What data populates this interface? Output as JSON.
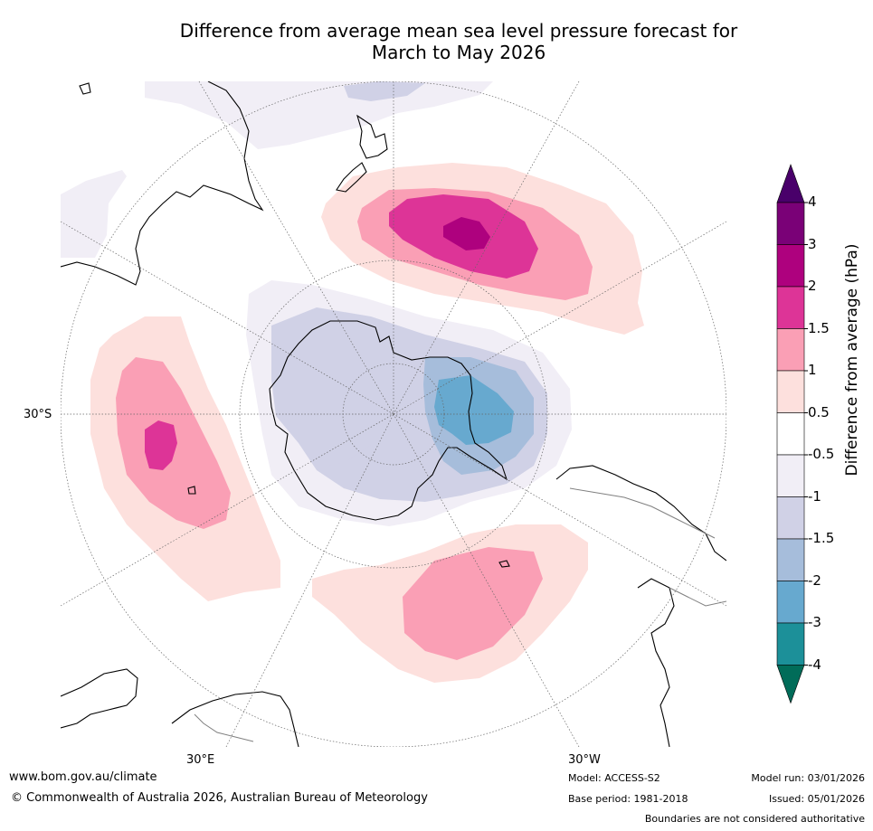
{
  "title": {
    "line1": "Difference from average mean sea level pressure forecast for",
    "line2": "March to May 2026"
  },
  "map": {
    "latitude_labels": [
      "30°S"
    ],
    "longitude_labels": [
      "30°E",
      "30°W"
    ],
    "anomaly_colors": {
      "neg_1_5_to_neg_1": "#d0d1e6",
      "neg_1_to_neg_0_5": "#f1eef6",
      "neg_2_to_neg_1_5": "#a6bddb",
      "neg_3_to_neg_2": "#67a9cf",
      "pos_0_5_to_1": "#fde0dd",
      "pos_1_to_1_5": "#fa9fb5",
      "pos_1_5_to_2": "#dd3497",
      "pos_2_to_3": "#ae017e"
    }
  },
  "colorbar": {
    "title": "Difference from average (hPa)",
    "tick_labels": [
      "4",
      "3",
      "2",
      "1.5",
      "1",
      "0.5",
      "-0.5",
      "-1",
      "-1.5",
      "-2",
      "-3",
      "-4"
    ],
    "colors": [
      "#49006a",
      "#7a0177",
      "#ae017e",
      "#dd3497",
      "#fa9fb5",
      "#fde0dd",
      "#ffffff",
      "#f1eef6",
      "#d0d1e6",
      "#a6bddb",
      "#67a9cf",
      "#1c9099",
      "#016c59"
    ]
  },
  "footer": {
    "website": "www.bom.gov.au/climate",
    "copyright": "© Commonwealth of Australia 2026, Australian Bureau of Meteorology",
    "model": "Model: ACCESS-S2",
    "base_period": "Base period: 1981-2018",
    "model_run": "Model run: 03/01/2026",
    "issued": "Issued: 05/01/2026",
    "disclaimer": "Boundaries are not considered authoritative"
  }
}
